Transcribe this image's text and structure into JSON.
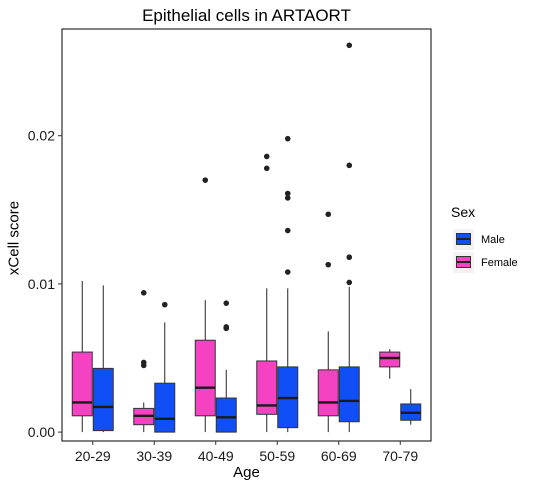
{
  "chart_data": {
    "type": "boxplot",
    "title": "Epithelial cells in ARTAORT",
    "xlabel": "Age",
    "ylabel": "xCell score",
    "categories": [
      "20-29",
      "30-39",
      "40-49",
      "50-59",
      "60-69",
      "70-79"
    ],
    "yticks": [
      0.0,
      0.01,
      0.02
    ],
    "ytick_labels": [
      "0.00",
      "0.01",
      "0.02"
    ],
    "ylim": [
      -0.0006,
      0.0272
    ],
    "grid": false,
    "legend": {
      "title": "Sex",
      "position": "right",
      "entries": [
        {
          "name": "Male",
          "color": "#0f4ff5"
        },
        {
          "name": "Female",
          "color": "#f542c2"
        }
      ]
    },
    "series": [
      {
        "name": "Female",
        "color": "#f542c2",
        "boxes": [
          {
            "category": "20-29",
            "q1": 0.0011,
            "median": 0.002,
            "q3": 0.0054,
            "whisker_low": 0.0,
            "whisker_high": 0.0102,
            "outliers": []
          },
          {
            "category": "30-39",
            "q1": 0.0005,
            "median": 0.0011,
            "q3": 0.0016,
            "whisker_low": 0.0,
            "whisker_high": 0.002,
            "outliers": [
              0.0094,
              0.0047,
              0.0045
            ]
          },
          {
            "category": "40-49",
            "q1": 0.0011,
            "median": 0.003,
            "q3": 0.0062,
            "whisker_low": 0.0,
            "whisker_high": 0.0089,
            "outliers": [
              0.017
            ]
          },
          {
            "category": "50-59",
            "q1": 0.0012,
            "median": 0.0018,
            "q3": 0.0048,
            "whisker_low": 0.0,
            "whisker_high": 0.0097,
            "outliers": [
              0.0186,
              0.0178
            ]
          },
          {
            "category": "60-69",
            "q1": 0.0011,
            "median": 0.002,
            "q3": 0.0042,
            "whisker_low": 0.0,
            "whisker_high": 0.0068,
            "outliers": [
              0.0147,
              0.0113
            ]
          },
          {
            "category": "70-79",
            "q1": 0.0044,
            "median": 0.005,
            "q3": 0.0054,
            "whisker_low": 0.0036,
            "whisker_high": 0.0056,
            "outliers": []
          }
        ]
      },
      {
        "name": "Male",
        "color": "#0f4ff5",
        "boxes": [
          {
            "category": "20-29",
            "q1": 0.0001,
            "median": 0.0017,
            "q3": 0.0043,
            "whisker_low": 0.0,
            "whisker_high": 0.0099,
            "outliers": []
          },
          {
            "category": "30-39",
            "q1": 0.0,
            "median": 0.0009,
            "q3": 0.0033,
            "whisker_low": 0.0,
            "whisker_high": 0.0074,
            "outliers": [
              0.0086
            ]
          },
          {
            "category": "40-49",
            "q1": 0.0,
            "median": 0.001,
            "q3": 0.0023,
            "whisker_low": 0.0,
            "whisker_high": 0.0042,
            "outliers": [
              0.0087,
              0.0071,
              0.007
            ]
          },
          {
            "category": "50-59",
            "q1": 0.0003,
            "median": 0.0023,
            "q3": 0.0044,
            "whisker_low": 0.0,
            "whisker_high": 0.0097,
            "outliers": [
              0.0198,
              0.0161,
              0.0158,
              0.0136,
              0.0108
            ]
          },
          {
            "category": "60-69",
            "q1": 0.0007,
            "median": 0.0021,
            "q3": 0.0044,
            "whisker_low": 0.0,
            "whisker_high": 0.0098,
            "outliers": [
              0.0261,
              0.018,
              0.0118,
              0.0101
            ]
          },
          {
            "category": "70-79",
            "q1": 0.0008,
            "median": 0.0013,
            "q3": 0.0019,
            "whisker_low": 0.0005,
            "whisker_high": 0.0029,
            "outliers": []
          }
        ]
      }
    ]
  }
}
